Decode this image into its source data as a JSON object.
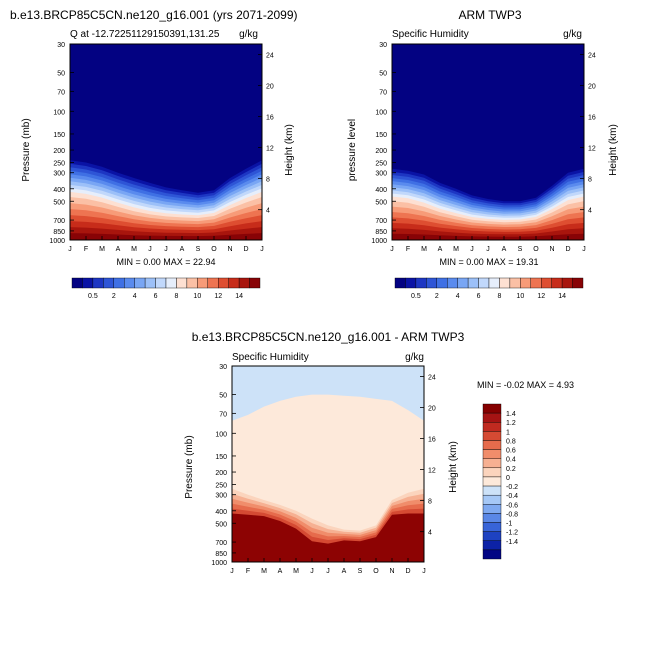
{
  "chart_data": [
    {
      "type": "heatmap",
      "panel_title": "b.e13.BRCP85C5CN.ne120_g16.001 (yrs 2071-2099)",
      "left_label": "Q at -12.72251129150391,131.25",
      "right_label": "g/kg",
      "ylabel": "Pressure (mb)",
      "ylabel_right": "Height (km)",
      "x_tick_labels": [
        "J",
        "F",
        "M",
        "A",
        "M",
        "J",
        "J",
        "A",
        "S",
        "O",
        "N",
        "D",
        "J"
      ],
      "y_ticks": [
        30,
        50,
        70,
        100,
        150,
        200,
        250,
        300,
        400,
        500,
        700,
        850,
        1000
      ],
      "height_ticks": [
        24,
        20,
        16,
        12,
        8,
        4
      ],
      "contour_levels": [
        0.5,
        1,
        1.5,
        2,
        2.5,
        3,
        4,
        5,
        6,
        7,
        8,
        9,
        10,
        11,
        12,
        13,
        14
      ],
      "colorbar_labels": [
        0.5,
        2,
        4,
        6,
        8,
        10,
        12,
        14
      ],
      "min_text": "MIN =   0.00 MAX =  22.94",
      "month_boundaries_mb": [
        240,
        250,
        270,
        300,
        330,
        360,
        390,
        410,
        430,
        410,
        330,
        280,
        240
      ],
      "month_surface_mb": [
        640,
        660,
        700,
        760,
        820,
        860,
        870,
        870,
        860,
        830,
        760,
        690,
        640
      ]
    },
    {
      "type": "heatmap",
      "panel_title": "ARM TWP3",
      "left_label": "Specific Humidity",
      "right_label": "g/kg",
      "ylabel": "pressure level",
      "ylabel_right": "Height (km)",
      "x_tick_labels": [
        "J",
        "F",
        "M",
        "A",
        "M",
        "J",
        "J",
        "A",
        "S",
        "O",
        "N",
        "D",
        "J"
      ],
      "y_ticks": [
        30,
        50,
        70,
        100,
        150,
        200,
        250,
        300,
        400,
        500,
        700,
        850,
        1000
      ],
      "height_ticks": [
        24,
        20,
        16,
        12,
        8,
        4
      ],
      "contour_levels": [
        0.5,
        1,
        1.5,
        2,
        2.5,
        3,
        4,
        5,
        6,
        7,
        8,
        9,
        10,
        11,
        12,
        13,
        14
      ],
      "colorbar_labels": [
        0.5,
        2,
        4,
        6,
        8,
        10,
        12,
        14
      ],
      "min_text": "MIN =   0.00 MAX =  19.31",
      "month_boundaries_mb": [
        280,
        290,
        310,
        360,
        400,
        450,
        480,
        500,
        500,
        470,
        380,
        300,
        280
      ],
      "month_surface_mb": [
        660,
        680,
        740,
        800,
        850,
        880,
        890,
        890,
        880,
        850,
        780,
        700,
        660
      ]
    },
    {
      "type": "heatmap",
      "panel_title": "b.e13.BRCP85C5CN.ne120_g16.001 - ARM TWP3",
      "left_label": "Specific Humidity",
      "right_label": "g/kg",
      "ylabel": "Pressure (mb)",
      "ylabel_right": "Height (km)",
      "x_tick_labels": [
        "J",
        "F",
        "M",
        "A",
        "M",
        "J",
        "J",
        "A",
        "S",
        "O",
        "N",
        "D",
        "J"
      ],
      "y_ticks": [
        30,
        50,
        70,
        100,
        150,
        200,
        250,
        300,
        400,
        500,
        700,
        850,
        1000
      ],
      "height_ticks": [
        24,
        20,
        16,
        12,
        8,
        4
      ],
      "contour_levels": [
        -1.4,
        -1.2,
        -1,
        -0.8,
        -0.6,
        -0.4,
        -0.2,
        0,
        0.2,
        0.4,
        0.6,
        0.8,
        1,
        1.2,
        1.4
      ],
      "colorbar_labels": [
        1.4,
        1.2,
        1,
        0.8,
        0.6,
        0.4,
        0.2,
        0,
        -0.2,
        -0.4,
        -0.6,
        -0.8,
        -1,
        -1.2,
        -1.4
      ],
      "min_text": "MIN =  -0.02 MAX =   4.93",
      "zero_line_mb": [
        80,
        72,
        62,
        56,
        52,
        50,
        50,
        51,
        52,
        54,
        56,
        66,
        80
      ],
      "mid_band_mb": [
        270,
        300,
        330,
        360,
        400,
        460,
        520,
        560,
        570,
        520,
        330,
        290,
        270
      ],
      "low_band_mb": [
        420,
        430,
        440,
        480,
        550,
        690,
        720,
        680,
        690,
        640,
        430,
        420,
        420
      ]
    }
  ],
  "palette_main": [
    "#030282",
    "#0a13a5",
    "#1d36c3",
    "#2e55d6",
    "#3f70e4",
    "#5a8bee",
    "#79a6f4",
    "#9cc0f8",
    "#c1d8fb",
    "#e6eefb",
    "#fde0d2",
    "#fbc0a5",
    "#f79b78",
    "#ee7451",
    "#de4e31",
    "#c72c1a",
    "#a8150d",
    "#880306"
  ],
  "palette_diff": [
    "#850000",
    "#a51313",
    "#c02a20",
    "#d54a33",
    "#e66b4c",
    "#f08d6b",
    "#f6b092",
    "#fbd4bd",
    "#fde9da",
    "#cde2f8",
    "#a6c8f6",
    "#7fa9f0",
    "#5a87e6",
    "#3864d8",
    "#1e42c1",
    "#0c22a6",
    "#020584"
  ]
}
